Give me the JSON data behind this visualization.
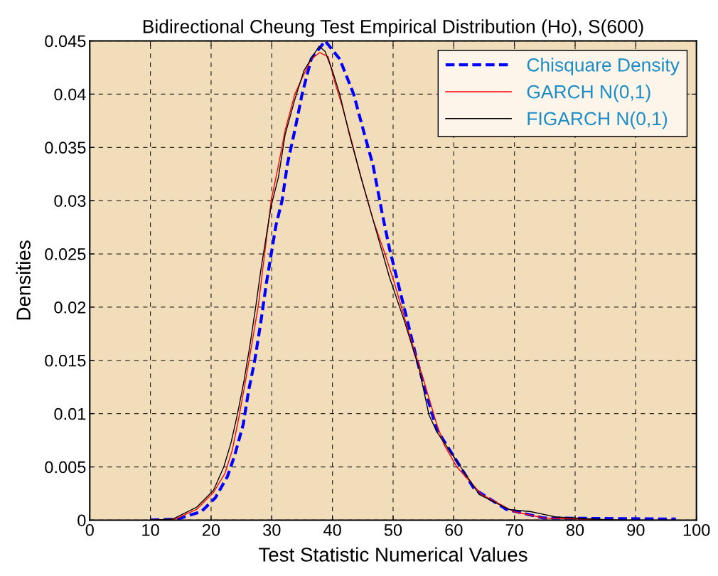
{
  "chart_data": {
    "type": "line",
    "title": "Bidirectional Cheung Test Empirical Distribution (Ho), S(600)",
    "xlabel": "Test Statistic Numerical Values",
    "ylabel": "Densities",
    "xlim": [
      0,
      100
    ],
    "ylim": [
      0,
      0.045
    ],
    "xticks": [
      0,
      10,
      20,
      30,
      40,
      50,
      60,
      70,
      80,
      90,
      100
    ],
    "yticks": [
      0,
      0.005,
      0.01,
      0.015,
      0.02,
      0.025,
      0.03,
      0.035,
      0.04,
      0.045
    ],
    "grid": true,
    "legend": "top right",
    "series": [
      {
        "name": "Chisquare Density",
        "color": "#0000ff",
        "line_style": "dashed",
        "x": [
          10,
          14.5,
          18.4,
          20.7,
          22.7,
          23.9,
          25.3,
          26.2,
          27.2,
          28.2,
          29.1,
          30.7,
          31.7,
          32.6,
          33.8,
          35.0,
          36.5,
          38.8,
          41.2,
          43.5,
          45.1,
          46.7,
          48.2,
          49.4,
          51.8,
          53.9,
          55.5,
          57.2,
          60.1,
          63.4,
          68.7,
          74.8,
          96.6
        ],
        "values": [
          0,
          0.0001,
          0.0008,
          0.0021,
          0.0041,
          0.0061,
          0.009,
          0.0122,
          0.015,
          0.0186,
          0.0222,
          0.0277,
          0.03,
          0.0335,
          0.0366,
          0.04,
          0.0433,
          0.045,
          0.0433,
          0.04,
          0.0366,
          0.0333,
          0.0288,
          0.0255,
          0.02,
          0.0151,
          0.0118,
          0.0085,
          0.0059,
          0.0029,
          0.001,
          0.0002,
          0.0001
        ]
      },
      {
        "name": "GARCH N(0,1)",
        "color": "#ff0000",
        "line_style": "solid",
        "x": [
          10,
          14.1,
          17.6,
          20.4,
          22.3,
          23.5,
          24.6,
          25.8,
          26.8,
          27.8,
          28.5,
          29.9,
          31.1,
          32.2,
          33.8,
          35.0,
          36.5,
          37.9,
          39.3,
          40.4,
          41.6,
          43.2,
          44.7,
          46.7,
          48.6,
          50.2,
          52.6,
          55.1,
          57.2,
          58.4,
          60.5,
          64.6,
          69.9,
          74.8,
          87.1
        ],
        "values": [
          0,
          0.0001,
          0.001,
          0.0026,
          0.0044,
          0.0066,
          0.0097,
          0.0135,
          0.0168,
          0.0202,
          0.0235,
          0.03,
          0.0333,
          0.0366,
          0.04,
          0.0415,
          0.0433,
          0.0439,
          0.0435,
          0.0411,
          0.0389,
          0.0355,
          0.0322,
          0.0282,
          0.0251,
          0.0223,
          0.0176,
          0.013,
          0.009,
          0.0071,
          0.005,
          0.0024,
          0.0008,
          0.0002,
          0
        ]
      },
      {
        "name": "FIGARCH N(0,1)",
        "color": "#000000",
        "line_style": "solid",
        "x": [
          10,
          13.7,
          17.6,
          20.4,
          22.1,
          23.3,
          24.4,
          25.4,
          26.4,
          27.4,
          28.2,
          29.9,
          31.1,
          32.2,
          33.8,
          35.3,
          36.7,
          37.8,
          38.8,
          40.0,
          41.2,
          42.8,
          44.7,
          46.7,
          48.6,
          49.4,
          51.8,
          54.3,
          55.9,
          57.2,
          60.9,
          64.2,
          69.1,
          72.7,
          76.8,
          83.0,
          87.1,
          96.6
        ],
        "values": [
          0,
          0.0001,
          0.0012,
          0.0028,
          0.005,
          0.0073,
          0.0101,
          0.013,
          0.0164,
          0.0202,
          0.0235,
          0.0295,
          0.0322,
          0.0362,
          0.0395,
          0.0422,
          0.0435,
          0.0445,
          0.044,
          0.0422,
          0.04,
          0.0362,
          0.0322,
          0.0282,
          0.0244,
          0.0228,
          0.0188,
          0.0142,
          0.0099,
          0.0083,
          0.0052,
          0.0024,
          0.001,
          0.0008,
          0.0003,
          0.0001,
          0,
          0
        ]
      }
    ]
  }
}
